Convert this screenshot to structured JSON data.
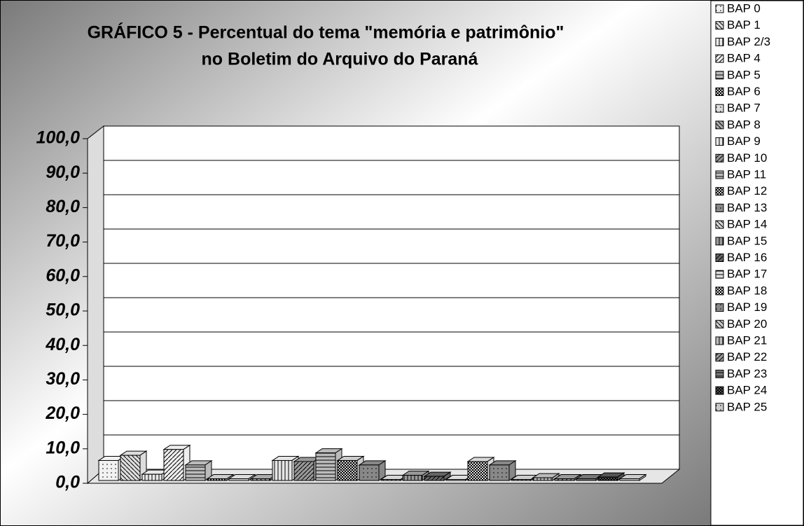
{
  "chart_data": {
    "type": "bar3d",
    "title": [
      "GRÁFICO 5 - Percentual do tema \"memória e patrimônio\"",
      "no Boletim do Arquivo do Paraná"
    ],
    "ylim": [
      0,
      100
    ],
    "yticks": [
      {
        "value": 0,
        "label": "0,0"
      },
      {
        "value": 10,
        "label": "10,0"
      },
      {
        "value": 20,
        "label": "20,0"
      },
      {
        "value": 30,
        "label": "30,0"
      },
      {
        "value": 40,
        "label": "40,0"
      },
      {
        "value": 50,
        "label": "50,0"
      },
      {
        "value": 60,
        "label": "60,0"
      },
      {
        "value": 70,
        "label": "70,0"
      },
      {
        "value": 80,
        "label": "80,0"
      },
      {
        "value": 90,
        "label": "90,0"
      },
      {
        "value": 100,
        "label": "100,0"
      }
    ],
    "grid": true,
    "legend": "right",
    "series": [
      {
        "name": "BAP 0",
        "color": "#f2f2f2",
        "values": [
          5.8
        ]
      },
      {
        "name": "BAP 1",
        "color": "#dddddd",
        "values": [
          7.3
        ]
      },
      {
        "name": "BAP 2/3",
        "color": "#e8e8e8",
        "values": [
          1.8
        ]
      },
      {
        "name": "BAP 4",
        "color": "#eeeeee",
        "values": [
          9.0
        ]
      },
      {
        "name": "BAP 5",
        "color": "#bbbbbb",
        "values": [
          4.5
        ]
      },
      {
        "name": "BAP 6",
        "color": "#cccccc",
        "values": [
          0.5
        ]
      },
      {
        "name": "BAP 7",
        "color": "#dddddd",
        "values": [
          0.5
        ]
      },
      {
        "name": "BAP 8",
        "color": "#aaaaaa",
        "values": [
          0.5
        ]
      },
      {
        "name": "BAP 9",
        "color": "#e6e6e6",
        "values": [
          5.8
        ]
      },
      {
        "name": "BAP 10",
        "color": "#999999",
        "values": [
          5.5
        ]
      },
      {
        "name": "BAP 11",
        "color": "#bbbbbb",
        "values": [
          8.0
        ]
      },
      {
        "name": "BAP 12",
        "color": "#cccccc",
        "values": [
          5.8
        ]
      },
      {
        "name": "BAP 13",
        "color": "#888888",
        "values": [
          4.5
        ]
      },
      {
        "name": "BAP 14",
        "color": "#d5d5d5",
        "values": [
          0.3
        ]
      },
      {
        "name": "BAP 15",
        "color": "#999999",
        "values": [
          1.5
        ]
      },
      {
        "name": "BAP 16",
        "color": "#666666",
        "values": [
          1.2
        ]
      },
      {
        "name": "BAP 17",
        "color": "#dddddd",
        "values": [
          0.3
        ]
      },
      {
        "name": "BAP 18",
        "color": "#d9d9d9",
        "values": [
          5.5
        ]
      },
      {
        "name": "BAP 19",
        "color": "#888888",
        "values": [
          4.5
        ]
      },
      {
        "name": "BAP 20",
        "color": "#cccccc",
        "values": [
          0.3
        ]
      },
      {
        "name": "BAP 21",
        "color": "#bbbbbb",
        "values": [
          0.8
        ]
      },
      {
        "name": "BAP 22",
        "color": "#999999",
        "values": [
          0.5
        ]
      },
      {
        "name": "BAP 23",
        "color": "#777777",
        "values": [
          0.5
        ]
      },
      {
        "name": "BAP 24",
        "color": "#555555",
        "values": [
          1.0
        ]
      },
      {
        "name": "BAP 25",
        "color": "#cccccc",
        "values": [
          0.5
        ]
      }
    ]
  }
}
